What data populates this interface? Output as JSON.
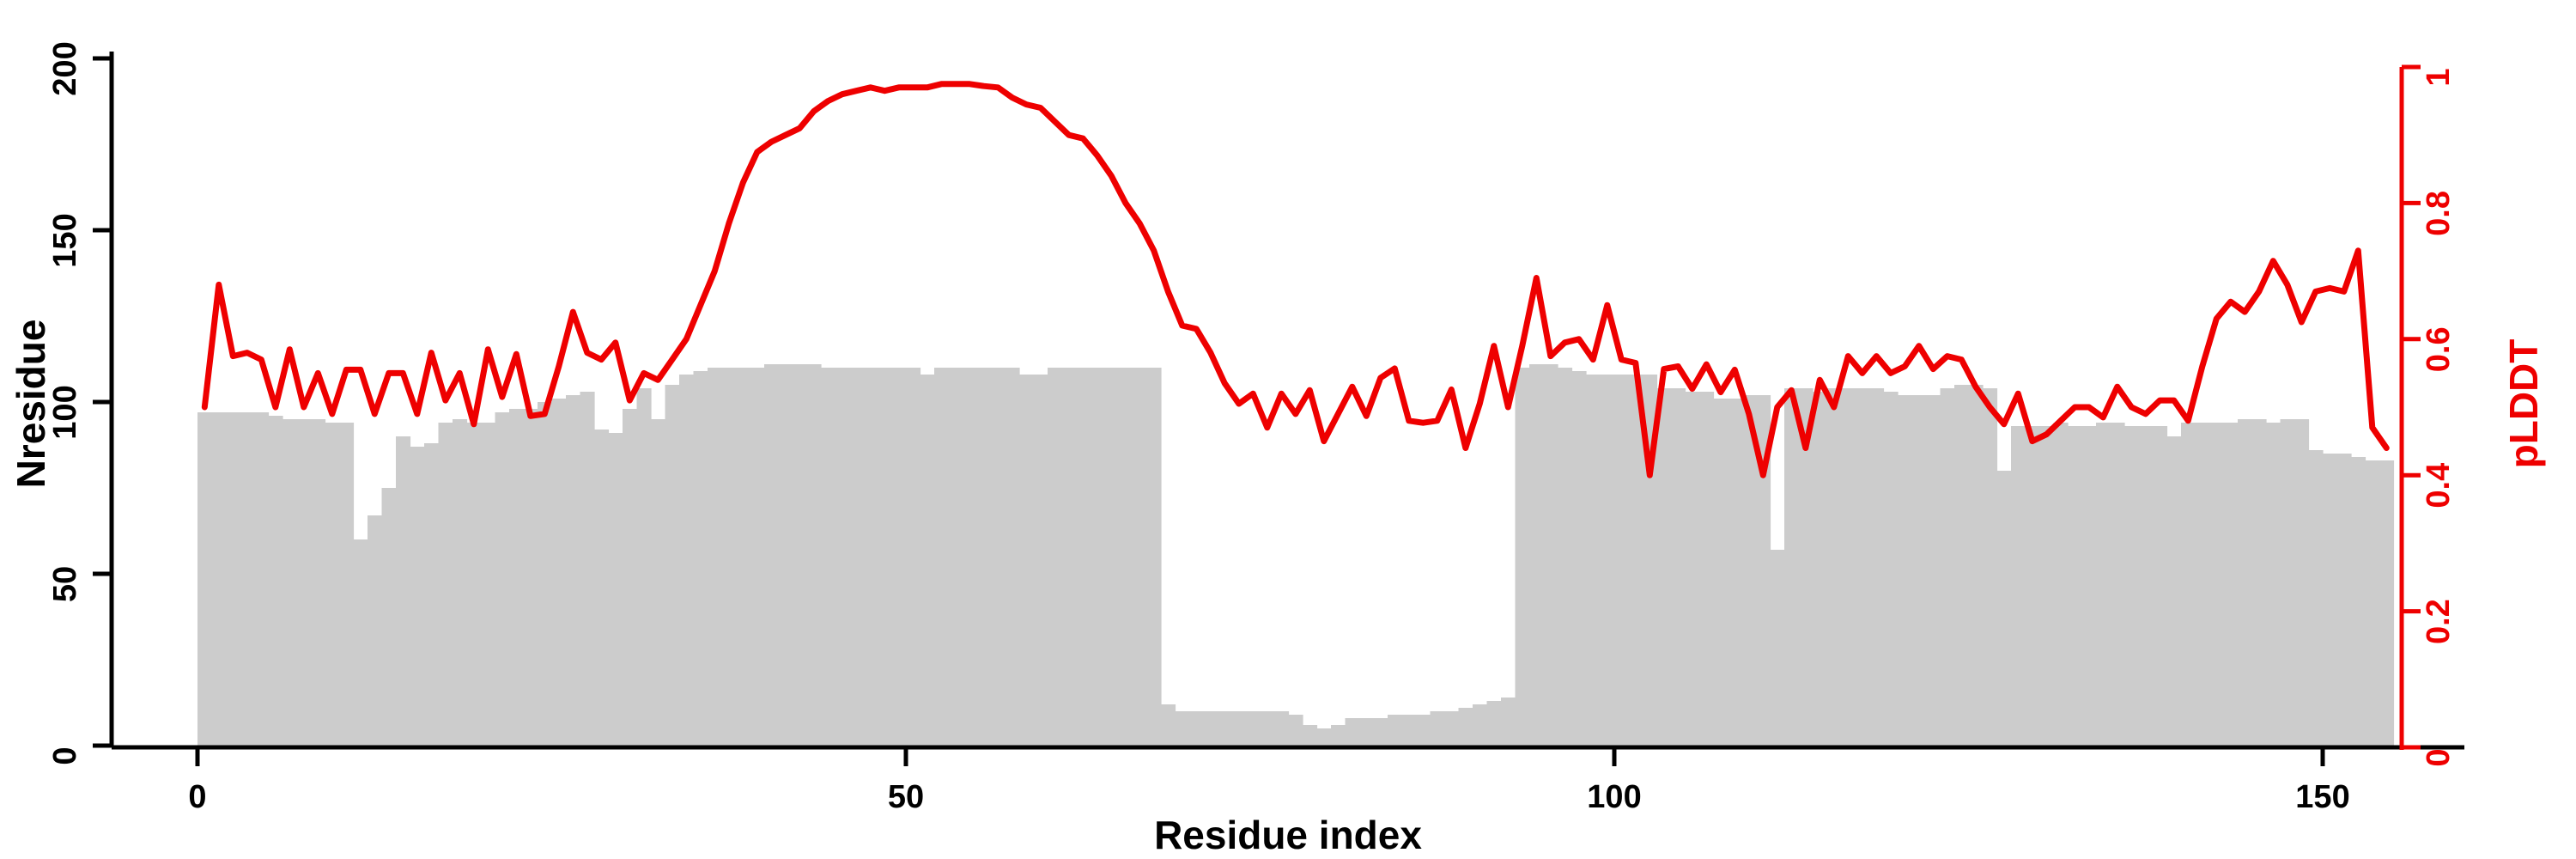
{
  "page": {
    "background": "#ffffff"
  },
  "chart_data": {
    "type": "bar",
    "subtype": "dual-axis bar+line",
    "title": "",
    "xlabel": "Residue index",
    "ylabel_left": "Nresidue",
    "ylabel_right": "pLDDT",
    "x_tick_labels": [
      "0",
      "50",
      "100",
      "150"
    ],
    "x_tick_values": [
      0,
      50,
      100,
      150
    ],
    "y_tick_labels_left": [
      "0",
      "50",
      "100",
      "150",
      "200"
    ],
    "y_tick_values_left": [
      0,
      50,
      100,
      150,
      200
    ],
    "y_tick_labels_right": [
      "0",
      "0.2",
      "0.4",
      "0.6",
      "0.8",
      "1"
    ],
    "y_tick_values_right": [
      0,
      0.2,
      0.4,
      0.6,
      0.8,
      1
    ],
    "xlim": [
      0,
      155
    ],
    "ylim_left": [
      0,
      200
    ],
    "ylim_right": [
      0,
      1
    ],
    "grid": false,
    "legend": "none",
    "bar_color": "#cccccc",
    "line_color": "#ee0000",
    "axis_color": "#000000",
    "residue_index_start": 0,
    "series": [
      {
        "name": "Nresidue",
        "type": "bar",
        "axis": "left",
        "values": [
          97,
          97,
          97,
          97,
          97,
          96,
          95,
          95,
          95,
          94,
          94,
          60,
          67,
          75,
          90,
          87,
          88,
          94,
          95,
          94,
          94,
          97,
          98,
          98,
          100,
          101,
          102,
          103,
          92,
          91,
          98,
          104,
          95,
          105,
          108,
          109,
          110,
          110,
          110,
          110,
          111,
          111,
          111,
          111,
          110,
          110,
          110,
          110,
          110,
          110,
          110,
          108,
          110,
          110,
          110,
          110,
          110,
          110,
          108,
          108,
          110,
          110,
          110,
          110,
          110,
          110,
          110,
          110,
          12,
          10,
          10,
          10,
          10,
          10,
          10,
          10,
          10,
          9,
          6,
          5,
          6,
          8,
          8,
          8,
          9,
          9,
          9,
          10,
          10,
          11,
          12,
          13,
          14,
          110,
          111,
          111,
          110,
          109,
          108,
          108,
          108,
          108,
          108,
          104,
          104,
          103,
          103,
          101,
          101,
          102,
          102,
          57,
          104,
          104,
          103,
          104,
          104,
          104,
          104,
          103,
          102,
          102,
          102,
          104,
          105,
          105,
          104,
          80,
          93,
          93,
          93,
          94,
          93,
          93,
          94,
          94,
          93,
          93,
          93,
          90,
          94,
          94,
          94,
          94,
          95,
          95,
          94,
          95,
          95,
          86,
          85,
          85,
          84,
          83,
          83
        ]
      },
      {
        "name": "pLDDT",
        "type": "line",
        "axis": "right",
        "values": [
          0.5,
          0.68,
          0.575,
          0.58,
          0.57,
          0.5,
          0.585,
          0.5,
          0.55,
          0.49,
          0.555,
          0.555,
          0.49,
          0.55,
          0.55,
          0.49,
          0.58,
          0.51,
          0.55,
          0.475,
          0.585,
          0.515,
          0.578,
          0.487,
          0.49,
          0.56,
          0.64,
          0.58,
          0.57,
          0.595,
          0.51,
          0.55,
          0.54,
          0.57,
          0.6,
          0.65,
          0.7,
          0.77,
          0.83,
          0.875,
          0.89,
          0.9,
          0.91,
          0.935,
          0.95,
          0.96,
          0.965,
          0.97,
          0.965,
          0.97,
          0.97,
          0.97,
          0.975,
          0.975,
          0.975,
          0.972,
          0.97,
          0.955,
          0.945,
          0.94,
          0.92,
          0.9,
          0.895,
          0.87,
          0.84,
          0.8,
          0.77,
          0.73,
          0.67,
          0.62,
          0.615,
          0.58,
          0.535,
          0.505,
          0.52,
          0.47,
          0.52,
          0.49,
          0.525,
          0.45,
          0.49,
          0.53,
          0.487,
          0.543,
          0.557,
          0.48,
          0.477,
          0.48,
          0.526,
          0.44,
          0.505,
          0.59,
          0.5,
          0.59,
          0.69,
          0.575,
          0.595,
          0.6,
          0.57,
          0.65,
          0.57,
          0.565,
          0.4,
          0.556,
          0.56,
          0.527,
          0.563,
          0.522,
          0.555,
          0.49,
          0.4,
          0.5,
          0.525,
          0.44,
          0.54,
          0.5,
          0.575,
          0.55,
          0.575,
          0.55,
          0.56,
          0.59,
          0.556,
          0.575,
          0.57,
          0.53,
          0.5,
          0.475,
          0.52,
          0.45,
          0.46,
          0.48,
          0.5,
          0.5,
          0.485,
          0.53,
          0.5,
          0.49,
          0.51,
          0.51,
          0.48,
          0.56,
          0.63,
          0.655,
          0.64,
          0.67,
          0.715,
          0.68,
          0.625,
          0.67,
          0.675,
          0.67,
          0.73,
          0.47,
          0.44
        ]
      }
    ]
  }
}
